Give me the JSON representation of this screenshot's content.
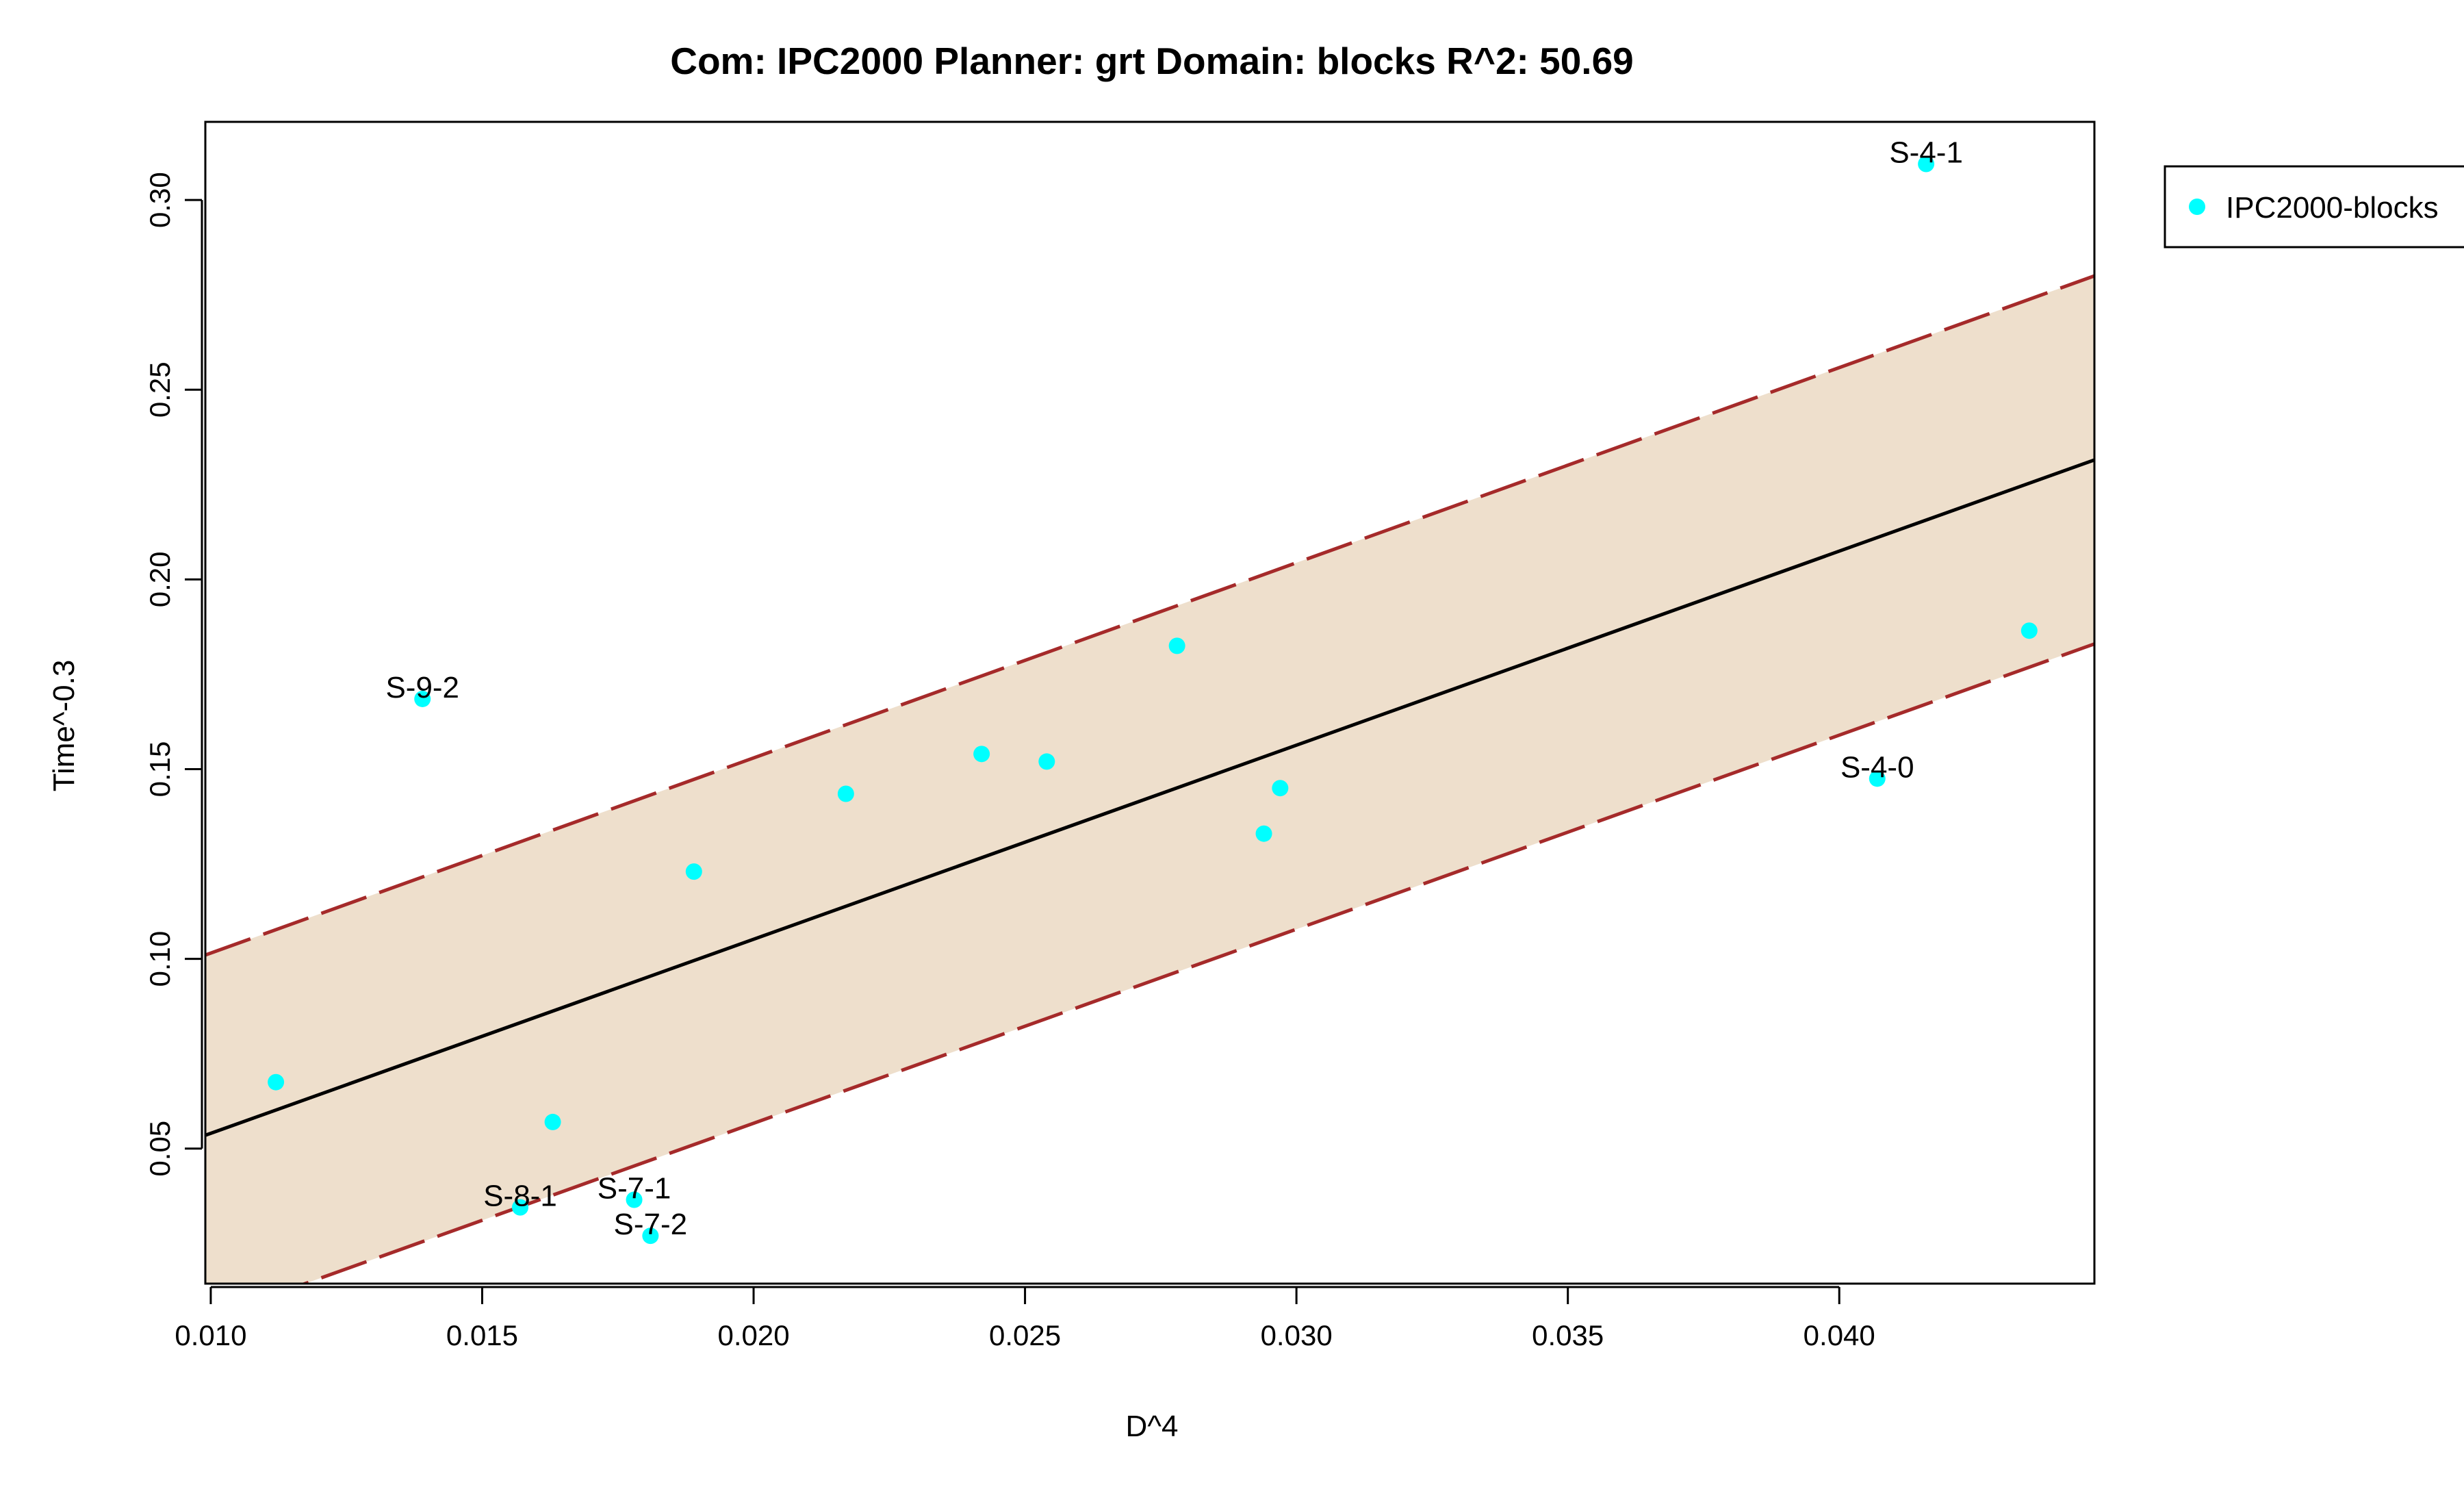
{
  "chart_data": {
    "type": "scatter",
    "title": "Com: IPC2000 Planner: grt Domain: blocks R^2: 50.69",
    "xlabel": "D^4",
    "ylabel": "Time^-0.3",
    "xlim": [
      0.0099,
      0.0447
    ],
    "ylim": [
      0.0144,
      0.3206
    ],
    "x_ticks": [
      "0.010",
      "0.015",
      "0.020",
      "0.025",
      "0.030",
      "0.035",
      "0.040"
    ],
    "y_ticks": [
      "0.05",
      "0.10",
      "0.15",
      "0.20",
      "0.25",
      "0.30"
    ],
    "legend": {
      "position": "outside-right",
      "entries": [
        "IPC2000-blocks"
      ]
    },
    "grid": false,
    "colors": {
      "points": "#00ffff",
      "fit_line": "#000000",
      "band_fill": "#eedfcc",
      "band_border": "#a52a2a"
    },
    "series": [
      {
        "name": "IPC2000-blocks",
        "points": [
          {
            "x": 0.0112,
            "y": 0.0675,
            "label": ""
          },
          {
            "x": 0.0139,
            "y": 0.1685,
            "label": "S-9-2"
          },
          {
            "x": 0.0157,
            "y": 0.0345,
            "label": "S-8-1"
          },
          {
            "x": 0.0163,
            "y": 0.057,
            "label": ""
          },
          {
            "x": 0.0178,
            "y": 0.0365,
            "label": "S-7-1"
          },
          {
            "x": 0.0181,
            "y": 0.027,
            "label": "S-7-2"
          },
          {
            "x": 0.0189,
            "y": 0.123,
            "label": ""
          },
          {
            "x": 0.0217,
            "y": 0.1435,
            "label": ""
          },
          {
            "x": 0.0242,
            "y": 0.154,
            "label": ""
          },
          {
            "x": 0.0254,
            "y": 0.152,
            "label": ""
          },
          {
            "x": 0.0278,
            "y": 0.1825,
            "label": ""
          },
          {
            "x": 0.0294,
            "y": 0.133,
            "label": ""
          },
          {
            "x": 0.0297,
            "y": 0.145,
            "label": ""
          },
          {
            "x": 0.0407,
            "y": 0.1475,
            "label": "S-4-0"
          },
          {
            "x": 0.0416,
            "y": 0.3095,
            "label": "S-4-1"
          },
          {
            "x": 0.0435,
            "y": 0.1865,
            "label": ""
          }
        ]
      }
    ],
    "fit_line": {
      "x": [
        0.0099,
        0.0447
      ],
      "y": [
        0.0535,
        0.2315
      ]
    },
    "prediction_band": {
      "upper": {
        "x": [
          0.0099,
          0.0447
        ],
        "y": [
          0.101,
          0.28
        ]
      },
      "lower": {
        "x": [
          0.0099,
          0.0447
        ],
        "y": [
          0.005,
          0.183
        ]
      }
    }
  }
}
